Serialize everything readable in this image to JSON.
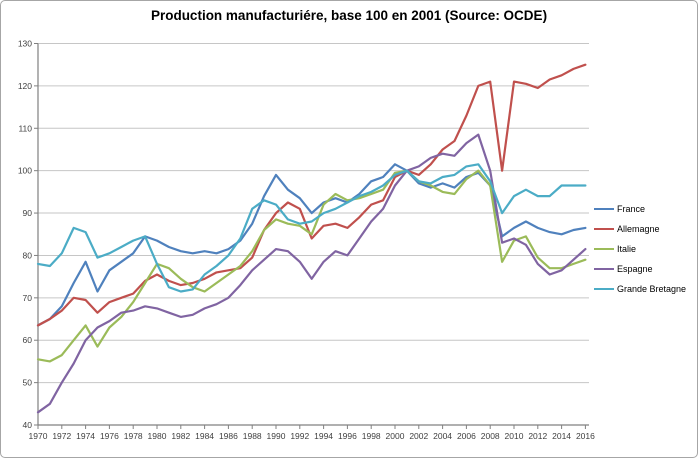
{
  "window": {
    "title": "Production manufacturiére, base 100 en 2001 (Source: OCDE)"
  },
  "chart_data": {
    "type": "line",
    "title": "Production manufacturiére, base 100 en 2001 (Source: OCDE)",
    "xlabel": "",
    "ylabel": "",
    "xlim": [
      1970,
      2016
    ],
    "ylim": [
      40,
      130
    ],
    "grid": "horizontal",
    "legend_position": "right",
    "axis_color": "#808080",
    "grid_color": "#c6c6c6",
    "tick_label_color": "#3f3f3f",
    "x": [
      1970,
      1971,
      1972,
      1973,
      1974,
      1975,
      1976,
      1977,
      1978,
      1979,
      1980,
      1981,
      1982,
      1983,
      1984,
      1985,
      1986,
      1987,
      1988,
      1989,
      1990,
      1991,
      1992,
      1993,
      1994,
      1995,
      1996,
      1997,
      1998,
      1999,
      2000,
      2001,
      2002,
      2003,
      2004,
      2005,
      2006,
      2007,
      2008,
      2009,
      2010,
      2011,
      2012,
      2013,
      2014,
      2015,
      2016
    ],
    "x_tick_labels": [
      "1970",
      "1972",
      "1974",
      "1976",
      "1978",
      "1980",
      "1982",
      "1984",
      "1986",
      "1988",
      "1990",
      "1992",
      "1994",
      "1996",
      "1998",
      "2000",
      "2002",
      "2004",
      "2006",
      "2008",
      "2010",
      "2012",
      "2014",
      "2016"
    ],
    "y_ticks": [
      40,
      50,
      60,
      70,
      80,
      90,
      100,
      110,
      120,
      130
    ],
    "series": [
      {
        "name": "France",
        "color": "#4F81BD",
        "values": [
          63.5,
          65,
          68,
          73.5,
          78.5,
          71.5,
          76.5,
          78.5,
          80.5,
          84.5,
          83.5,
          82,
          81,
          80.5,
          81,
          80.5,
          81.5,
          83.5,
          87.5,
          94,
          99,
          95.5,
          93.5,
          90,
          92.5,
          93.5,
          92.5,
          94.5,
          97.5,
          98.5,
          101.5,
          100,
          97,
          96,
          97,
          96,
          98.5,
          99.5,
          96.5,
          84.5,
          86.5,
          88,
          86.5,
          85.5,
          85,
          86,
          86.5
        ]
      },
      {
        "name": "Allemagne",
        "color": "#C0504D",
        "values": [
          63.5,
          65,
          67,
          70,
          69.5,
          66.5,
          69,
          70,
          71,
          74,
          75.5,
          74,
          73,
          73.5,
          74.5,
          76,
          76.5,
          77,
          79.5,
          86,
          90,
          92.5,
          91,
          84,
          87,
          87.5,
          86.5,
          89,
          92,
          93,
          98.5,
          100,
          99,
          101.5,
          105,
          107,
          113,
          120,
          121,
          100,
          121,
          120.5,
          119.5,
          121.5,
          122.5,
          124,
          125
        ]
      },
      {
        "name": "Italie",
        "color": "#9BBB59",
        "values": [
          55.5,
          55,
          56.5,
          60,
          63.5,
          58.5,
          63,
          65.5,
          69,
          73.5,
          78,
          77,
          74.5,
          72.5,
          71.5,
          73.5,
          75.5,
          77.5,
          81,
          86,
          88.5,
          87.5,
          87,
          85,
          92,
          94.5,
          93,
          93.5,
          94.5,
          95.5,
          99.5,
          100,
          97.5,
          96.5,
          95,
          94.5,
          98,
          100,
          96.5,
          78.5,
          83.5,
          84.5,
          79.5,
          77,
          77,
          78,
          79
        ]
      },
      {
        "name": "Espagne",
        "color": "#8064A2",
        "values": [
          43,
          45,
          50,
          54.5,
          60,
          63,
          64.5,
          66.5,
          67,
          68,
          67.5,
          66.5,
          65.5,
          66,
          67.5,
          68.5,
          70,
          73,
          76.5,
          79,
          81.5,
          81,
          78.5,
          74.5,
          78.5,
          81,
          80,
          84,
          88,
          91,
          96.5,
          100,
          101,
          103,
          104,
          103.5,
          106.5,
          108.5,
          100,
          83,
          84,
          82.5,
          78,
          75.5,
          76.5,
          79,
          81.5
        ]
      },
      {
        "name": "Grande Bretagne",
        "color": "#4BACC6",
        "values": [
          78,
          77.5,
          80.5,
          86.5,
          85.5,
          79.5,
          80.5,
          82,
          83.5,
          84.5,
          78,
          72.5,
          71.5,
          72,
          75.5,
          77.5,
          80,
          84,
          91,
          93,
          92,
          88.5,
          87.5,
          88,
          90,
          91,
          92.5,
          94,
          95,
          96.5,
          99,
          100,
          97.5,
          97,
          98.5,
          99,
          101,
          101.5,
          97.5,
          90,
          94,
          95.5,
          94,
          94,
          96.5,
          96.5,
          96.5
        ]
      }
    ]
  }
}
